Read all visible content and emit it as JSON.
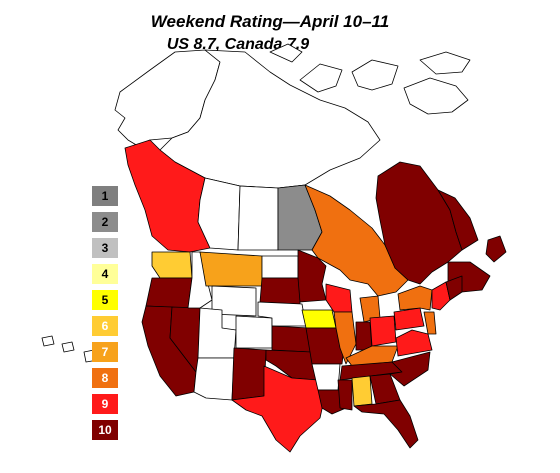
{
  "title": "Weekend Rating—April 10–11",
  "subtitle": "US 8.7, Canada 7.9",
  "legend": [
    {
      "label": "1",
      "color": "#7f7f7f",
      "text": "#000000"
    },
    {
      "label": "2",
      "color": "#8c8c8c",
      "text": "#000000"
    },
    {
      "label": "3",
      "color": "#c0c0c0",
      "text": "#000000"
    },
    {
      "label": "4",
      "color": "#ffff99",
      "text": "#000000"
    },
    {
      "label": "5",
      "color": "#ffff00",
      "text": "#000000"
    },
    {
      "label": "6",
      "color": "#ffcc33",
      "text": "#ffffff"
    },
    {
      "label": "7",
      "color": "#f7a21b",
      "text": "#ffffff"
    },
    {
      "label": "8",
      "color": "#f07010",
      "text": "#ffffff"
    },
    {
      "label": "9",
      "color": "#ff1a1a",
      "text": "#ffffff"
    },
    {
      "label": "10",
      "color": "#800000",
      "text": "#ffffff"
    }
  ],
  "colors": {
    "outline": "#000000",
    "unrated": "#ffffff",
    "rating_10": "#800000",
    "rating_9": "#ff1a1a",
    "rating_8": "#f07010",
    "rating_7": "#f7a21b",
    "rating_6": "#ffcc33",
    "rating_5": "#ffff00",
    "rating_2": "#8c8c8c"
  }
}
